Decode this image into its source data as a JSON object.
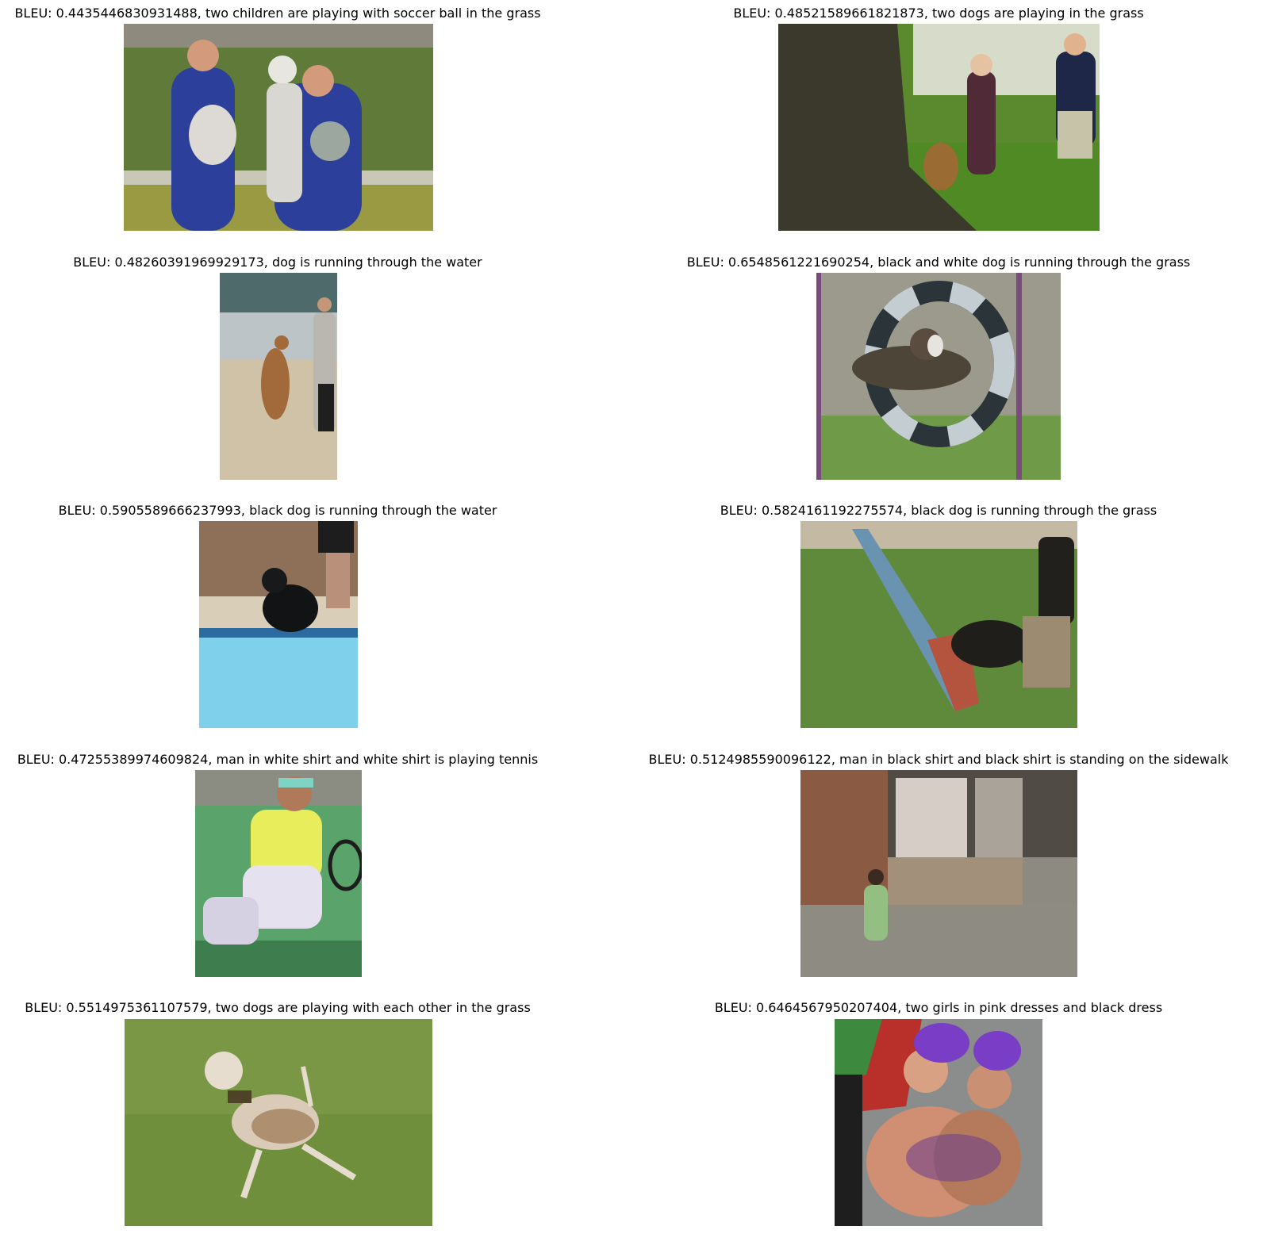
{
  "figure": {
    "panels": [
      {
        "title": "BLEU: 0.4435446830931488, two children are playing with soccer ball in the grass",
        "image": "photo: two men in blue flight suits carrying a little girl and a stuffed toy on grass"
      },
      {
        "title": "BLEU: 0.48521589661821873, two dogs are playing in the grass",
        "image": "photo: small dog climbing a tree trunk while two children watch on grass"
      },
      {
        "title": "BLEU: 0.48260391969929173, dog is running through the water",
        "image": "photo: brown dog leaping in sand with a man holding a leash"
      },
      {
        "title": "BLEU: 0.6548561221690254, black and white dog is running through the grass",
        "image": "photo: brindle dog jumping through a black and white tire hoop"
      },
      {
        "title": "BLEU: 0.5905589666237993, black dog is running through the water",
        "image": "photo: black dog jumping into a blue swimming pool"
      },
      {
        "title": "BLEU: 0.5824161192275574, black dog is running through the grass",
        "image": "photo: black dog coming off an agility ramp on grass with a handler"
      },
      {
        "title": "BLEU: 0.47255389974609824, man in white shirt and white shirt is playing tennis",
        "image": "photo: tennis player in white and yellow shirt with teal headband swinging racket"
      },
      {
        "title": "BLEU: 0.5124985590096122, man in black shirt and black shirt is standing on the sidewalk",
        "image": "photo: small child in green walking on a sidewalk in front of a shop window"
      },
      {
        "title": "BLEU: 0.5514975361107579, two dogs are playing with each other in the grass",
        "image": "photo: whippet dog running on green grass"
      },
      {
        "title": "BLEU: 0.6464567950207404, two girls in pink dresses and black dress",
        "image": "photo: two women in purple feathered carnival costumes posing"
      }
    ]
  }
}
